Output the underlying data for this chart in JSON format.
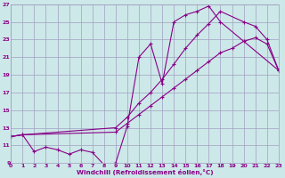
{
  "xlabel": "Windchill (Refroidissement éolien,°C)",
  "bg_color": "#cde8e8",
  "grid_color": "#a0a0c0",
  "line_color": "#880088",
  "xlim": [
    0,
    23
  ],
  "ylim": [
    9,
    27
  ],
  "xticks": [
    0,
    1,
    2,
    3,
    4,
    5,
    6,
    7,
    8,
    9,
    10,
    11,
    12,
    13,
    14,
    15,
    16,
    17,
    18,
    19,
    20,
    21,
    22,
    23
  ],
  "yticks": [
    9,
    11,
    13,
    15,
    17,
    19,
    21,
    23,
    25,
    27
  ],
  "line1_x": [
    0,
    1,
    2,
    3,
    4,
    5,
    6,
    7,
    8,
    9,
    10,
    11,
    12,
    13,
    14,
    15,
    16,
    17,
    18,
    23
  ],
  "line1_y": [
    12.0,
    12.2,
    10.3,
    10.8,
    10.5,
    10.0,
    10.5,
    10.2,
    8.8,
    9.0,
    13.2,
    21.0,
    22.5,
    18.0,
    25.0,
    25.8,
    26.2,
    26.8,
    25.0,
    19.5
  ],
  "line2_x": [
    0,
    1,
    9,
    10,
    11,
    12,
    13,
    14,
    15,
    16,
    17,
    18,
    20,
    21,
    22,
    23
  ],
  "line2_y": [
    12.0,
    12.2,
    13.0,
    14.2,
    15.8,
    17.0,
    18.5,
    20.2,
    22.0,
    23.5,
    24.8,
    26.2,
    25.0,
    24.5,
    23.0,
    19.5
  ],
  "line3_x": [
    0,
    1,
    9,
    10,
    11,
    12,
    13,
    14,
    15,
    16,
    17,
    18,
    19,
    20,
    21,
    22,
    23
  ],
  "line3_y": [
    12.0,
    12.2,
    12.5,
    13.5,
    14.5,
    15.5,
    16.5,
    17.5,
    18.5,
    19.5,
    20.5,
    21.5,
    22.0,
    22.8,
    23.2,
    22.5,
    19.5
  ]
}
